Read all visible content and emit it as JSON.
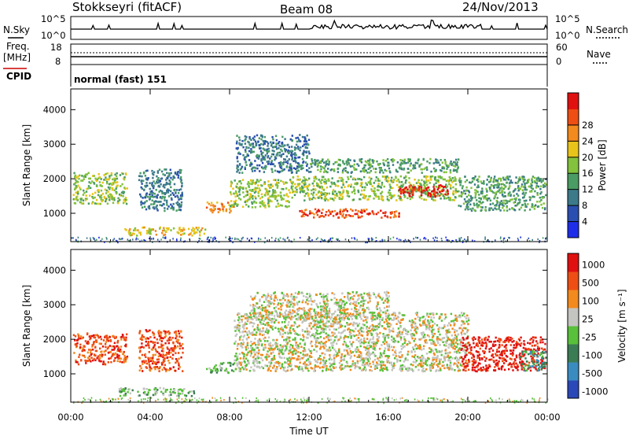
{
  "header": {
    "station": "Stokkseyri (fitACF)",
    "beam": "Beam 08",
    "date": "24/Nov/2013"
  },
  "top_panels": {
    "nsky": {
      "label": "N.Sky",
      "ticks": [
        "10^5",
        "10^0"
      ]
    },
    "nsearch": {
      "label": "N.Search",
      "ticks": [
        "10^5",
        "10^0"
      ]
    },
    "freq": {
      "label_line1": "Freq.",
      "label_line2": "[MHz]",
      "ticks": [
        "18",
        "8"
      ]
    },
    "nave": {
      "label": "Nave",
      "ticks": [
        "60",
        "0"
      ]
    },
    "cpid": {
      "label": "CPID",
      "value": "normal (fast) 151"
    }
  },
  "chart_data": [
    {
      "type": "heatmap",
      "name": "power",
      "ylabel": "Slant Range [km]",
      "xlabel": "",
      "ylim": [
        180,
        4600
      ],
      "yticks": [
        1000,
        2000,
        3000,
        4000
      ],
      "xlim_hours": [
        0,
        24
      ],
      "xtick_labels": [
        "00:00",
        "04:00",
        "08:00",
        "12:00",
        "16:00",
        "20:00",
        "00:00"
      ],
      "colorbar": {
        "label": "Power [dB]",
        "ticks": [
          4,
          8,
          12,
          16,
          20,
          24,
          28
        ],
        "colors": [
          "#1e2ee8",
          "#2a4fb0",
          "#3c7a8a",
          "#4a9c64",
          "#82c23c",
          "#e8c41a",
          "#f28a1e",
          "#ee4e14",
          "#e01010"
        ]
      },
      "regions": [
        {
          "t": [
            0.1,
            2.8
          ],
          "r": [
            1300,
            2200
          ],
          "level": 4
        },
        {
          "t": [
            3.4,
            5.6
          ],
          "r": [
            1100,
            2300
          ],
          "level": 2
        },
        {
          "t": [
            2.6,
            6.8
          ],
          "r": [
            380,
            620
          ],
          "level": 5
        },
        {
          "t": [
            6.8,
            8.2
          ],
          "r": [
            1050,
            1350
          ],
          "level": 6
        },
        {
          "t": [
            8.0,
            11.0
          ],
          "r": [
            1200,
            2000
          ],
          "level": 4
        },
        {
          "t": [
            8.3,
            12.0
          ],
          "r": [
            2200,
            3300
          ],
          "level": 2
        },
        {
          "t": [
            11.0,
            19.5
          ],
          "r": [
            1400,
            2100
          ],
          "level": 4
        },
        {
          "t": [
            11.5,
            16.5
          ],
          "r": [
            900,
            1150
          ],
          "level": 7
        },
        {
          "t": [
            16.5,
            19.0
          ],
          "r": [
            1500,
            1850
          ],
          "level": 8
        },
        {
          "t": [
            12.0,
            19.5
          ],
          "r": [
            2200,
            2600
          ],
          "level": 3
        },
        {
          "t": [
            19.5,
            23.9
          ],
          "r": [
            1100,
            2100
          ],
          "level": 3
        }
      ]
    },
    {
      "type": "heatmap",
      "name": "velocity",
      "ylabel": "Slant Range [km]",
      "xlabel": "Time UT",
      "ylim": [
        180,
        4600
      ],
      "yticks": [
        1000,
        2000,
        3000,
        4000
      ],
      "xlim_hours": [
        0,
        24
      ],
      "xtick_labels": [
        "00:00",
        "04:00",
        "08:00",
        "12:00",
        "16:00",
        "20:00",
        "00:00"
      ],
      "colorbar": {
        "label": "Velocity [m s⁻¹]",
        "ticks": [
          "1000",
          "500",
          "100",
          "25",
          "-25",
          "-100",
          "-500",
          "-1000"
        ],
        "colors": [
          "#2b48b8",
          "#3a8cc0",
          "#3c7c54",
          "#58c03a",
          "#c4c4c0",
          "#f28a1e",
          "#ee4e14",
          "#e01010"
        ]
      },
      "regions": [
        {
          "t": [
            0.1,
            2.8
          ],
          "r": [
            1300,
            2200
          ],
          "level": 6
        },
        {
          "t": [
            3.4,
            5.6
          ],
          "r": [
            1100,
            2300
          ],
          "level": 6
        },
        {
          "t": [
            2.4,
            6.2
          ],
          "r": [
            380,
            620
          ],
          "level": 3
        },
        {
          "t": [
            6.8,
            8.2
          ],
          "r": [
            1050,
            1350
          ],
          "level": 3
        },
        {
          "t": [
            8.2,
            20.0
          ],
          "r": [
            1100,
            2800
          ],
          "level": 4
        },
        {
          "t": [
            9.0,
            16.0
          ],
          "r": [
            2600,
            3400
          ],
          "level": 4
        },
        {
          "t": [
            19.6,
            23.9
          ],
          "r": [
            1100,
            2100
          ],
          "level": 7
        },
        {
          "t": [
            22.6,
            23.9
          ],
          "r": [
            1100,
            1700
          ],
          "level": 2
        }
      ]
    }
  ]
}
